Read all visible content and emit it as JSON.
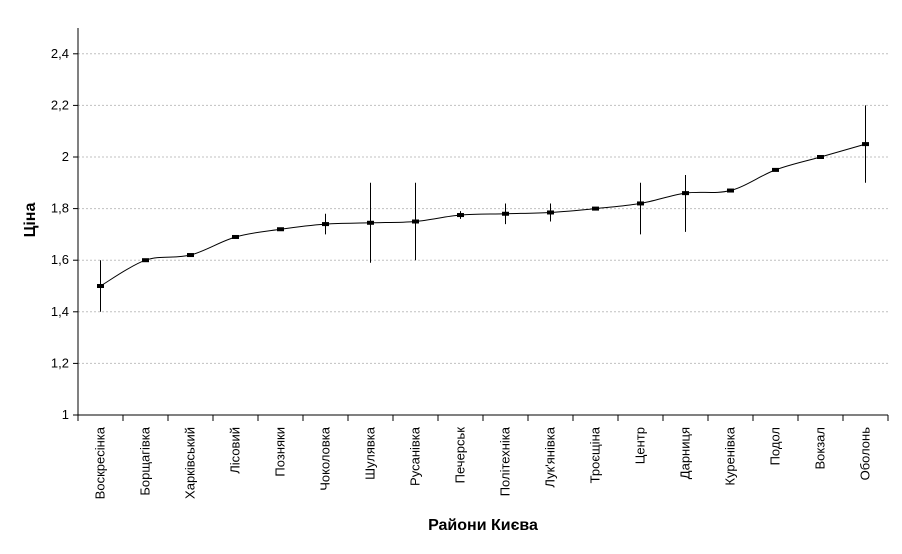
{
  "chart_data": {
    "type": "line",
    "title": "",
    "xlabel": "Райони Києва",
    "ylabel": "Ціна",
    "ylim": [
      1,
      2.5
    ],
    "yticks": [
      "1",
      "1,2",
      "1,4",
      "1,6",
      "1,8",
      "2",
      "2,2",
      "2,4"
    ],
    "grid": "horizontal-dashed",
    "categories": [
      "Воскресінка",
      "Борщагівка",
      "Харківський",
      "Лісовий",
      "Позняки",
      "Чоколовка",
      "Шулявка",
      "Русанівка",
      "Печерськ",
      "Політехніка",
      "Лук'янівка",
      "Троєщіна",
      "Центр",
      "Дарниця",
      "Куренівка",
      "Подол",
      "Вокзал",
      "Оболонь"
    ],
    "values": [
      1.5,
      1.6,
      1.62,
      1.69,
      1.72,
      1.74,
      1.745,
      1.75,
      1.775,
      1.78,
      1.785,
      1.8,
      1.82,
      1.86,
      1.87,
      1.95,
      2.0,
      2.05
    ],
    "error_low": [
      1.4,
      1.6,
      1.62,
      1.69,
      1.72,
      1.7,
      1.59,
      1.6,
      1.76,
      1.74,
      1.75,
      1.8,
      1.7,
      1.71,
      1.87,
      1.95,
      2.0,
      1.9
    ],
    "error_high": [
      1.6,
      1.6,
      1.62,
      1.69,
      1.72,
      1.78,
      1.9,
      1.9,
      1.79,
      1.82,
      1.82,
      1.8,
      1.9,
      1.93,
      1.87,
      1.95,
      2.0,
      2.2
    ],
    "line_color": "#000000",
    "grid_color": "#c0c0c0"
  }
}
